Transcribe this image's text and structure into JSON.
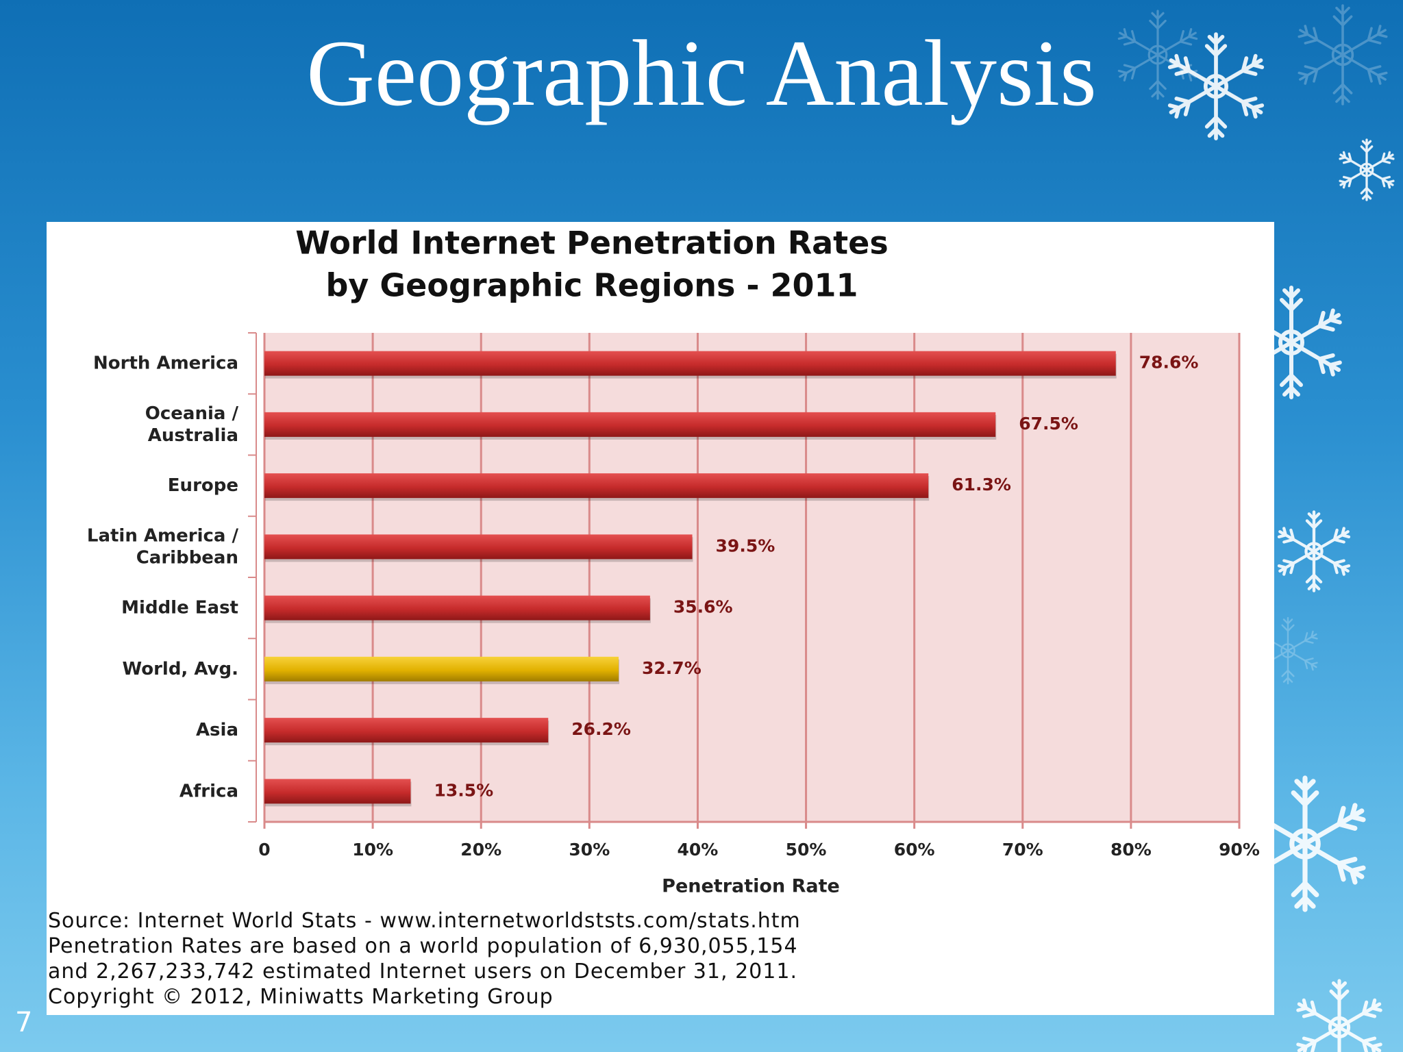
{
  "slide": {
    "title": "Geographic Analysis",
    "page_number": "7"
  },
  "colors": {
    "bar": "#c62b2b",
    "highlight_bar": "#e2b100",
    "plot_bg": "#f5dcdc",
    "grid": "#d98a8a",
    "label": "#7a1414"
  },
  "chart_data": {
    "type": "bar",
    "orientation": "horizontal",
    "title": "World Internet Penetration Rates",
    "subtitle": "by Geographic Regions - 2011",
    "xlabel": "Penetration Rate",
    "ylabel": "",
    "xlim": [
      0,
      90
    ],
    "grid": true,
    "categories": [
      [
        "North America"
      ],
      [
        "Oceania  /",
        "Australia"
      ],
      [
        "Europe"
      ],
      [
        "Latin America /",
        "Caribbean"
      ],
      [
        "Middle East"
      ],
      [
        "World, Avg."
      ],
      [
        "Asia"
      ],
      [
        "Africa"
      ]
    ],
    "values": [
      78.6,
      67.5,
      61.3,
      39.5,
      35.6,
      32.7,
      26.2,
      13.5
    ],
    "value_labels": [
      "78.6%",
      "67.5%",
      "61.3%",
      "39.5%",
      "35.6%",
      "32.7%",
      "26.2%",
      "13.5%"
    ],
    "highlight_index": 5,
    "ticks": [
      0,
      10,
      20,
      30,
      40,
      50,
      60,
      70,
      80,
      90
    ],
    "tick_labels": [
      "0",
      "10%",
      "20%",
      "30%",
      "40%",
      "50%",
      "60%",
      "70%",
      "80%",
      "90%"
    ]
  },
  "source": {
    "lines": [
      "Source: Internet World Stats - www.internetworldststs.com/stats.htm",
      "Penetration Rates are based on a world population of 6,930,055,154",
      "and 2,267,233,742 estimated Internet users on December 31, 2011.",
      "Copyright © 2012, Miniwatts Marketing Group"
    ]
  }
}
